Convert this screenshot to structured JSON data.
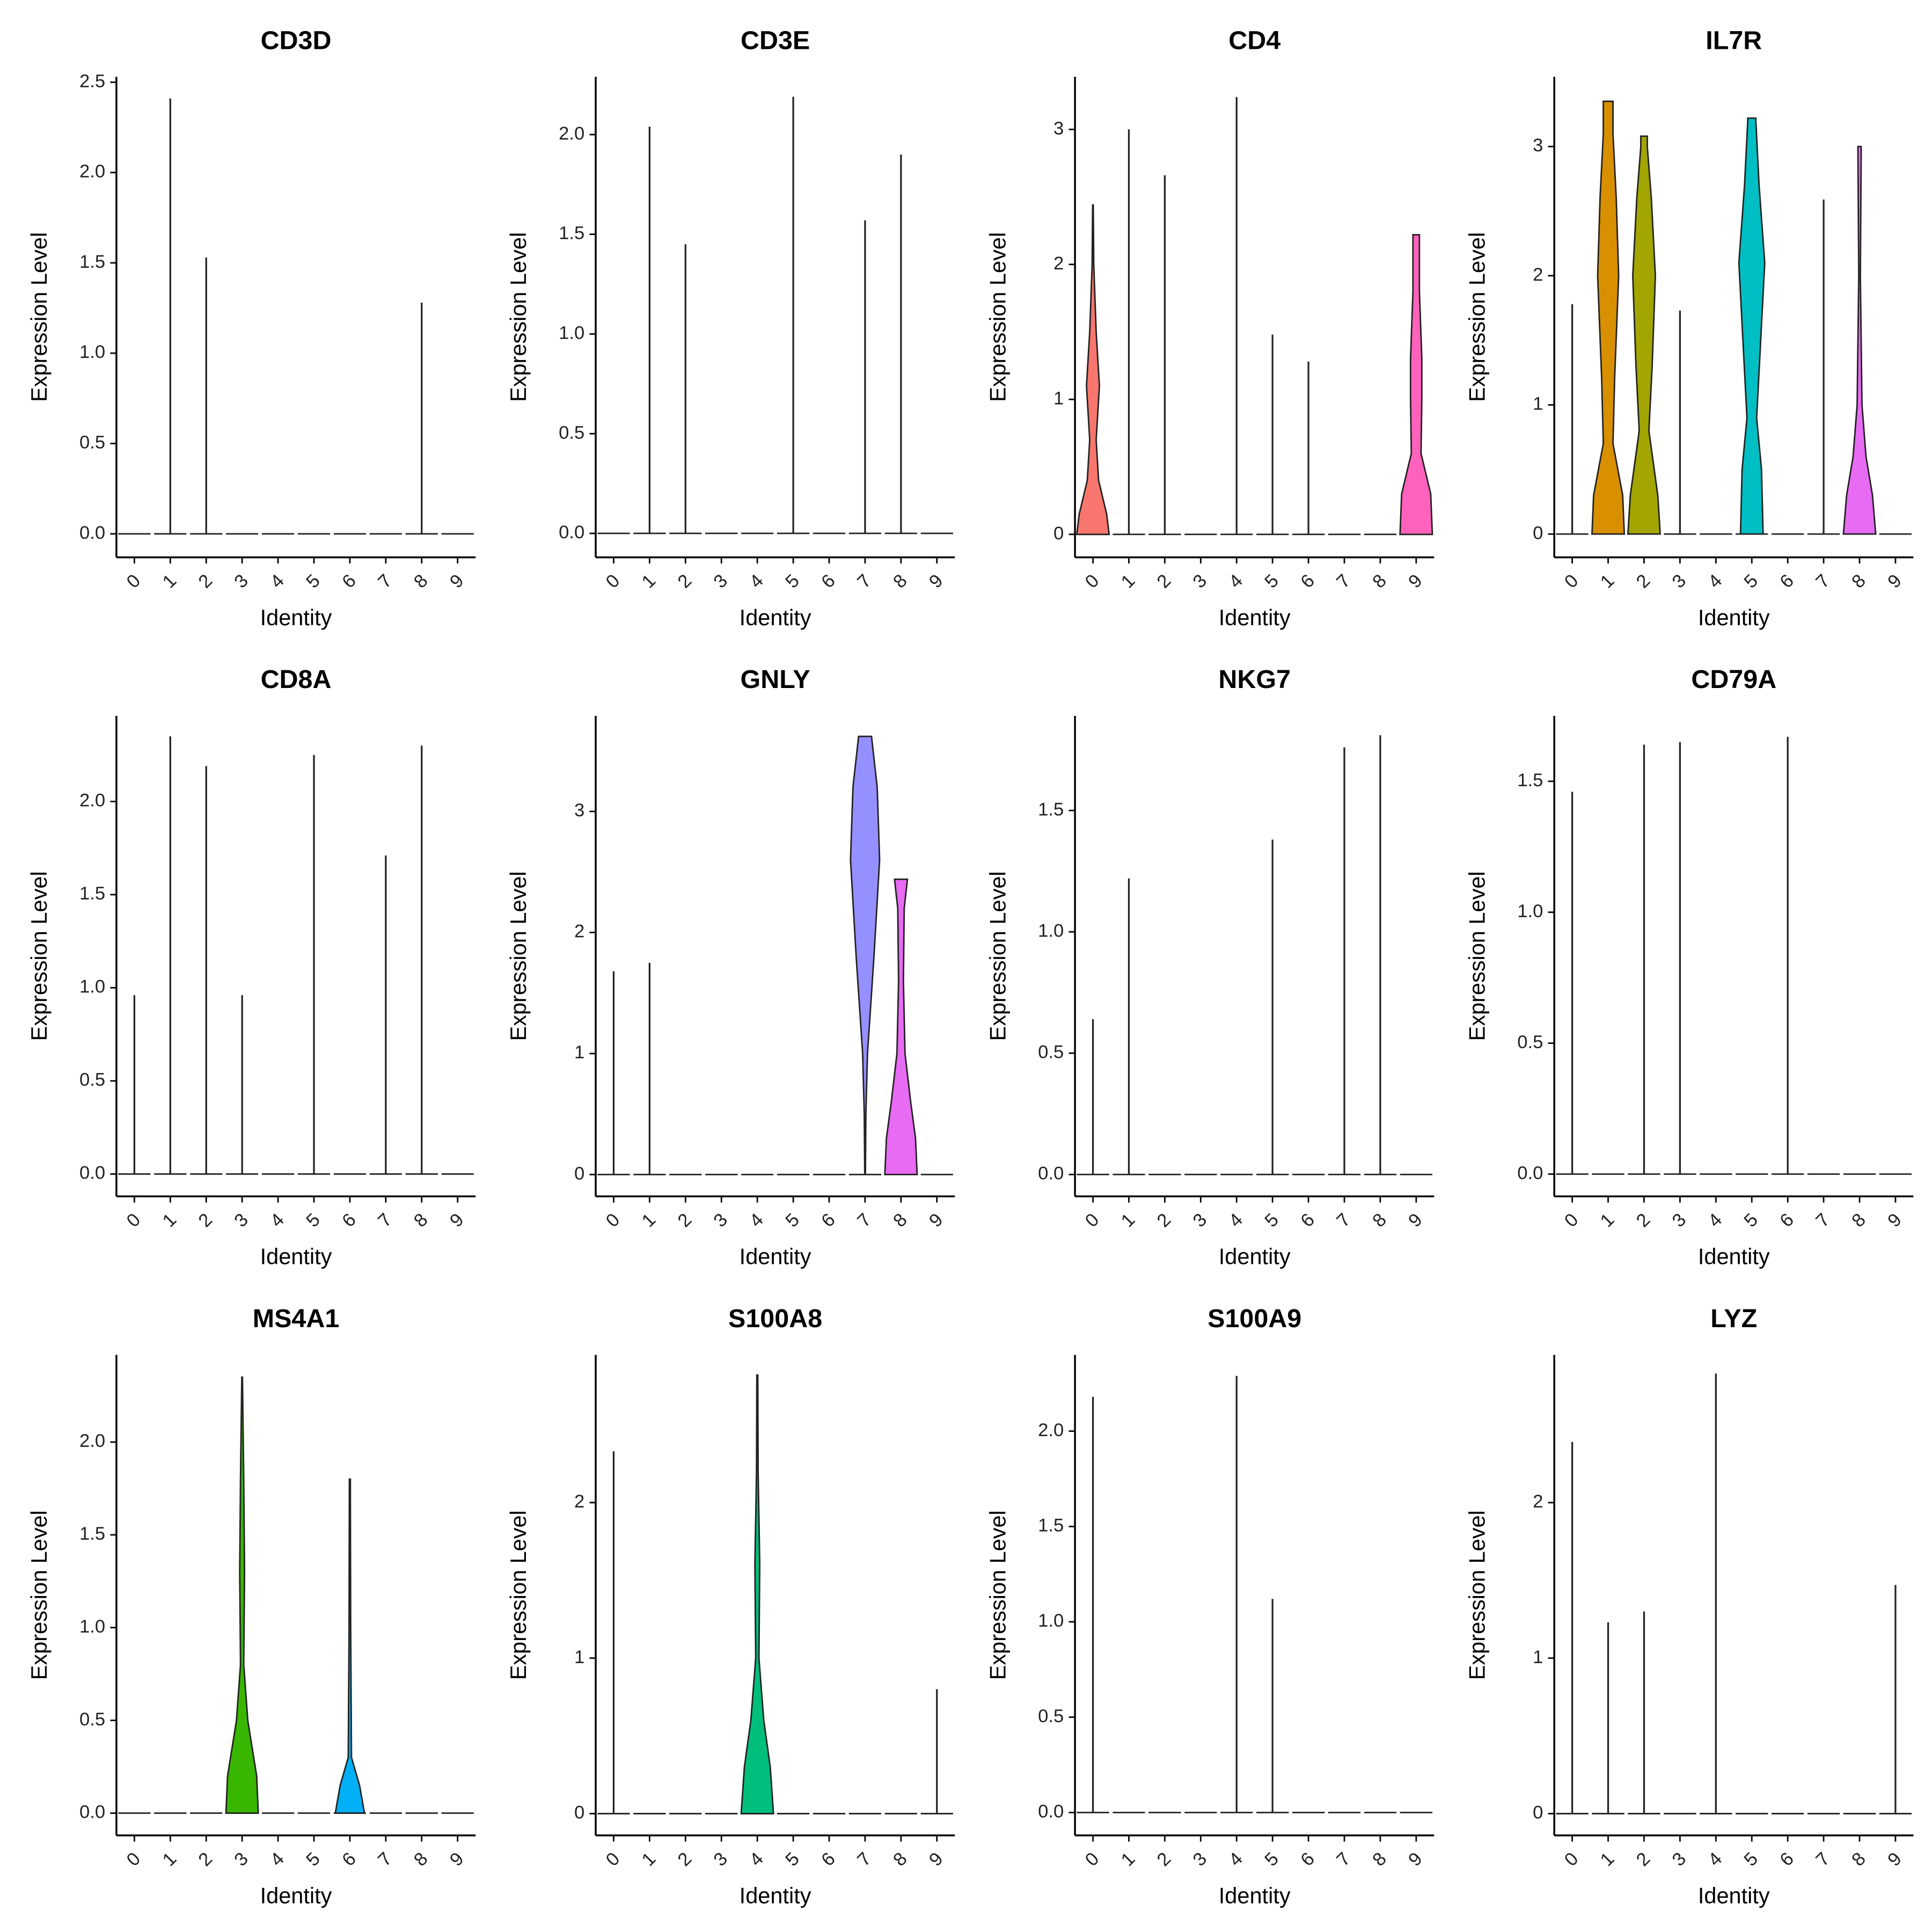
{
  "colors": [
    "#F8766D",
    "#D89000",
    "#A3A500",
    "#39B600",
    "#00BF7D",
    "#00BFC4",
    "#00B0F6",
    "#9590FF",
    "#E76BF3",
    "#FF62BC"
  ],
  "chart_data": [
    {
      "type": "violin",
      "title": "CD3D",
      "ylabel": "Expression Level",
      "xlabel": "Identity",
      "categories": [
        "0",
        "1",
        "2",
        "3",
        "4",
        "5",
        "6",
        "7",
        "8",
        "9"
      ],
      "values": [
        0,
        2.41,
        1.53,
        0,
        0,
        0,
        0,
        0,
        1.28,
        0
      ],
      "density": [
        null,
        null,
        null,
        null,
        null,
        null,
        null,
        null,
        null,
        null
      ],
      "ylim": [
        -0.13,
        2.53
      ],
      "yticks": [
        {
          "value": 0,
          "label": "0.0"
        },
        0.5,
        {
          "value": 1,
          "label": "1.0"
        },
        1.5,
        {
          "value": 2,
          "label": "2.0"
        },
        2.5
      ]
    },
    {
      "type": "violin",
      "title": "CD3E",
      "ylabel": "Expression Level",
      "xlabel": "Identity",
      "categories": [
        "0",
        "1",
        "2",
        "3",
        "4",
        "5",
        "6",
        "7",
        "8",
        "9"
      ],
      "values": [
        0,
        2.04,
        1.45,
        0,
        0,
        2.19,
        0,
        1.57,
        1.9,
        0
      ],
      "density": [
        null,
        null,
        null,
        null,
        null,
        null,
        null,
        null,
        null,
        null
      ],
      "ylim": [
        -0.12,
        2.29
      ],
      "yticks": [
        {
          "value": 0,
          "label": "0.0"
        },
        0.5,
        {
          "value": 1,
          "label": "1.0"
        },
        1.5,
        {
          "value": 2,
          "label": "2.0"
        }
      ]
    },
    {
      "type": "violin",
      "title": "CD4",
      "ylabel": "Expression Level",
      "xlabel": "Identity",
      "categories": [
        "0",
        "1",
        "2",
        "3",
        "4",
        "5",
        "6",
        "7",
        "8",
        "9"
      ],
      "values": [
        2.44,
        3.0,
        2.66,
        0,
        3.24,
        1.48,
        1.28,
        0,
        0,
        2.22
      ],
      "density": [
        [
          [
            0,
            1
          ],
          [
            0.15,
            0.85
          ],
          [
            0.4,
            0.35
          ],
          [
            0.7,
            0.2
          ],
          [
            1.1,
            0.4
          ],
          [
            1.5,
            0.2
          ],
          [
            2.0,
            0.05
          ],
          [
            2.44,
            0.02
          ]
        ],
        null,
        null,
        null,
        null,
        null,
        null,
        null,
        null,
        [
          [
            0,
            1
          ],
          [
            0.3,
            0.9
          ],
          [
            0.6,
            0.3
          ],
          [
            1.0,
            0.35
          ],
          [
            1.3,
            0.35
          ],
          [
            1.8,
            0.2
          ],
          [
            2.22,
            0.2
          ]
        ]
      ],
      "ylim": [
        -0.17,
        3.39
      ],
      "yticks": [
        0,
        1,
        2,
        3
      ]
    },
    {
      "type": "violin",
      "title": "IL7R",
      "ylabel": "Expression Level",
      "xlabel": "Identity",
      "categories": [
        "0",
        "1",
        "2",
        "3",
        "4",
        "5",
        "6",
        "7",
        "8",
        "9"
      ],
      "values": [
        1.78,
        3.35,
        3.08,
        1.73,
        0,
        3.22,
        0,
        2.59,
        3.0,
        0
      ],
      "density": [
        null,
        [
          [
            0,
            1
          ],
          [
            0.3,
            0.9
          ],
          [
            0.7,
            0.3
          ],
          [
            1.2,
            0.4
          ],
          [
            2.0,
            0.65
          ],
          [
            2.6,
            0.5
          ],
          [
            3.1,
            0.3
          ],
          [
            3.35,
            0.3
          ]
        ],
        [
          [
            0,
            1
          ],
          [
            0.3,
            0.85
          ],
          [
            0.8,
            0.3
          ],
          [
            1.3,
            0.5
          ],
          [
            2.0,
            0.7
          ],
          [
            2.6,
            0.45
          ],
          [
            3.0,
            0.2
          ],
          [
            3.08,
            0.2
          ]
        ],
        null,
        null,
        [
          [
            0,
            0.7
          ],
          [
            0.5,
            0.6
          ],
          [
            0.9,
            0.3
          ],
          [
            1.5,
            0.55
          ],
          [
            2.1,
            0.8
          ],
          [
            2.7,
            0.45
          ],
          [
            3.2,
            0.25
          ],
          [
            3.22,
            0.25
          ]
        ],
        null,
        null,
        [
          [
            0,
            1
          ],
          [
            0.3,
            0.8
          ],
          [
            0.6,
            0.4
          ],
          [
            1.0,
            0.15
          ],
          [
            2.0,
            0.05
          ],
          [
            2.95,
            0.1
          ],
          [
            3.0,
            0.1
          ]
        ],
        null
      ],
      "ylim": [
        -0.18,
        3.54
      ],
      "yticks": [
        0,
        1,
        2,
        3
      ]
    },
    {
      "type": "violin",
      "title": "CD8A",
      "ylabel": "Expression Level",
      "xlabel": "Identity",
      "categories": [
        "0",
        "1",
        "2",
        "3",
        "4",
        "5",
        "6",
        "7",
        "8",
        "9"
      ],
      "values": [
        0.96,
        2.35,
        2.19,
        0.96,
        0,
        2.25,
        0,
        1.71,
        2.3,
        0
      ],
      "density": [
        null,
        null,
        null,
        null,
        null,
        null,
        null,
        null,
        null,
        null
      ],
      "ylim": [
        -0.12,
        2.46
      ],
      "yticks": [
        {
          "value": 0,
          "label": "0.0"
        },
        0.5,
        {
          "value": 1,
          "label": "1.0"
        },
        1.5,
        {
          "value": 2,
          "label": "2.0"
        }
      ]
    },
    {
      "type": "violin",
      "title": "GNLY",
      "ylabel": "Expression Level",
      "xlabel": "Identity",
      "categories": [
        "0",
        "1",
        "2",
        "3",
        "4",
        "5",
        "6",
        "7",
        "8",
        "9"
      ],
      "values": [
        1.68,
        1.75,
        0,
        0,
        0,
        0,
        0,
        3.62,
        2.44,
        0
      ],
      "density": [
        null,
        null,
        null,
        null,
        null,
        null,
        null,
        [
          [
            0,
            0.02
          ],
          [
            0.5,
            0.05
          ],
          [
            1.0,
            0.15
          ],
          [
            1.8,
            0.55
          ],
          [
            2.6,
            0.9
          ],
          [
            3.2,
            0.75
          ],
          [
            3.62,
            0.4
          ]
        ],
        [
          [
            0,
            1
          ],
          [
            0.3,
            0.9
          ],
          [
            0.6,
            0.6
          ],
          [
            1.0,
            0.25
          ],
          [
            1.6,
            0.15
          ],
          [
            2.2,
            0.2
          ],
          [
            2.44,
            0.4
          ]
        ],
        null
      ],
      "ylim": [
        -0.18,
        3.79
      ],
      "yticks": [
        0,
        1,
        2,
        3
      ]
    },
    {
      "type": "violin",
      "title": "NKG7",
      "ylabel": "Expression Level",
      "xlabel": "Identity",
      "categories": [
        "0",
        "1",
        "2",
        "3",
        "4",
        "5",
        "6",
        "7",
        "8",
        "9"
      ],
      "values": [
        0.64,
        1.22,
        0,
        0,
        0,
        1.38,
        0,
        1.76,
        1.81,
        0
      ],
      "density": [
        null,
        null,
        null,
        null,
        null,
        null,
        null,
        null,
        null,
        null
      ],
      "ylim": [
        -0.09,
        1.89
      ],
      "yticks": [
        {
          "value": 0,
          "label": "0.0"
        },
        0.5,
        {
          "value": 1,
          "label": "1.0"
        },
        1.5
      ]
    },
    {
      "type": "violin",
      "title": "CD79A",
      "ylabel": "Expression Level",
      "xlabel": "Identity",
      "categories": [
        "0",
        "1",
        "2",
        "3",
        "4",
        "5",
        "6",
        "7",
        "8",
        "9"
      ],
      "values": [
        1.46,
        0,
        1.64,
        1.65,
        0,
        0,
        1.67,
        0,
        0,
        0
      ],
      "density": [
        null,
        null,
        null,
        null,
        null,
        null,
        null,
        null,
        null,
        null
      ],
      "ylim": [
        -0.085,
        1.75
      ],
      "yticks": [
        {
          "value": 0,
          "label": "0.0"
        },
        0.5,
        {
          "value": 1,
          "label": "1.0"
        },
        1.5
      ]
    },
    {
      "type": "violin",
      "title": "MS4A1",
      "ylabel": "Expression Level",
      "xlabel": "Identity",
      "categories": [
        "0",
        "1",
        "2",
        "3",
        "4",
        "5",
        "6",
        "7",
        "8",
        "9"
      ],
      "values": [
        0,
        0,
        0,
        2.35,
        0,
        0,
        1.8,
        0,
        0,
        0
      ],
      "density": [
        null,
        null,
        null,
        [
          [
            0,
            1
          ],
          [
            0.2,
            0.9
          ],
          [
            0.5,
            0.35
          ],
          [
            0.8,
            0.1
          ],
          [
            1.3,
            0.15
          ],
          [
            1.8,
            0.1
          ],
          [
            2.35,
            0.02
          ]
        ],
        null,
        null,
        [
          [
            0,
            0.9
          ],
          [
            0.15,
            0.6
          ],
          [
            0.3,
            0.1
          ],
          [
            1.0,
            0.05
          ],
          [
            1.8,
            0.03
          ]
        ],
        null,
        null,
        null
      ],
      "ylim": [
        -0.12,
        2.47
      ],
      "yticks": [
        {
          "value": 0,
          "label": "0.0"
        },
        0.5,
        {
          "value": 1,
          "label": "1.0"
        },
        1.5,
        {
          "value": 2,
          "label": "2.0"
        }
      ]
    },
    {
      "type": "violin",
      "title": "S100A8",
      "ylabel": "Expression Level",
      "xlabel": "Identity",
      "categories": [
        "0",
        "1",
        "2",
        "3",
        "4",
        "5",
        "6",
        "7",
        "8",
        "9"
      ],
      "values": [
        2.33,
        0,
        0,
        0,
        2.82,
        0,
        0,
        0,
        0,
        0.8
      ],
      "density": [
        null,
        null,
        null,
        null,
        [
          [
            0,
            1
          ],
          [
            0.3,
            0.8
          ],
          [
            0.6,
            0.4
          ],
          [
            1.0,
            0.1
          ],
          [
            1.6,
            0.15
          ],
          [
            2.2,
            0.05
          ],
          [
            2.82,
            0.03
          ]
        ],
        null,
        null,
        null,
        null,
        null
      ],
      "ylim": [
        -0.14,
        2.95
      ],
      "yticks": [
        0,
        1,
        2
      ]
    },
    {
      "type": "violin",
      "title": "S100A9",
      "ylabel": "Expression Level",
      "xlabel": "Identity",
      "categories": [
        "0",
        "1",
        "2",
        "3",
        "4",
        "5",
        "6",
        "7",
        "8",
        "9"
      ],
      "values": [
        2.18,
        0,
        0,
        0,
        2.29,
        1.12,
        0,
        0,
        0,
        0
      ],
      "density": [
        null,
        null,
        null,
        null,
        null,
        null,
        null,
        null,
        null,
        null
      ],
      "ylim": [
        -0.12,
        2.4
      ],
      "yticks": [
        {
          "value": 0,
          "label": "0.0"
        },
        0.5,
        {
          "value": 1,
          "label": "1.0"
        },
        1.5,
        {
          "value": 2,
          "label": "2.0"
        }
      ]
    },
    {
      "type": "violin",
      "title": "LYZ",
      "ylabel": "Expression Level",
      "xlabel": "Identity",
      "categories": [
        "0",
        "1",
        "2",
        "3",
        "4",
        "5",
        "6",
        "7",
        "8",
        "9"
      ],
      "values": [
        2.39,
        1.23,
        1.3,
        0,
        2.83,
        0,
        0,
        0,
        0,
        1.47
      ],
      "density": [
        null,
        null,
        null,
        null,
        null,
        null,
        null,
        null,
        null,
        null
      ],
      "ylim": [
        -0.14,
        2.95
      ],
      "yticks": [
        0,
        1,
        2
      ]
    }
  ]
}
